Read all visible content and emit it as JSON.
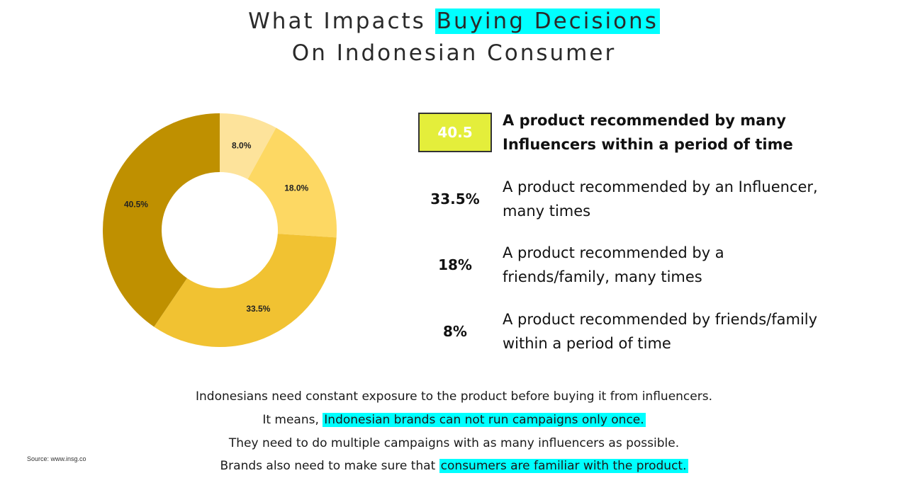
{
  "title": {
    "line1_prefix": "What Impacts ",
    "line1_highlight": "Buying Decisions",
    "line2": "On Indonesian Consumer"
  },
  "chart_data": {
    "type": "pie",
    "donut": true,
    "values": [
      8.0,
      18.0,
      33.5,
      40.5
    ],
    "labels": [
      "8.0%",
      "18.0%",
      "33.5%",
      "40.5%"
    ],
    "colors": [
      "#fde39b",
      "#fdd863",
      "#f1c232",
      "#bf9000"
    ]
  },
  "legend": [
    {
      "value": "40.5",
      "text": "A product recommended by many Influencers within a period of time",
      "boxed": true
    },
    {
      "value": "33.5%",
      "text": "A product recommended by an Influencer, many times",
      "boxed": false
    },
    {
      "value": "18%",
      "text": "A product recommended by a friends/family, many times",
      "boxed": false
    },
    {
      "value": "8%",
      "text": "A product recommended by friends/family within a period of time",
      "boxed": false
    }
  ],
  "footer": {
    "line1": "Indonesians need constant exposure to the product before buying it from influencers.",
    "line2_prefix": "It means, ",
    "line2_highlight": "Indonesian brands can not run campaigns only once.",
    "line3": "They need to do multiple campaigns with as many influencers as possible.",
    "line4_prefix": "Brands also need to make sure that ",
    "line4_highlight": "consumers are familiar with the product."
  },
  "source": "Source: www.insg.co",
  "colors": {
    "highlight": "#00ffff",
    "value_box": "#e4ee3b"
  }
}
